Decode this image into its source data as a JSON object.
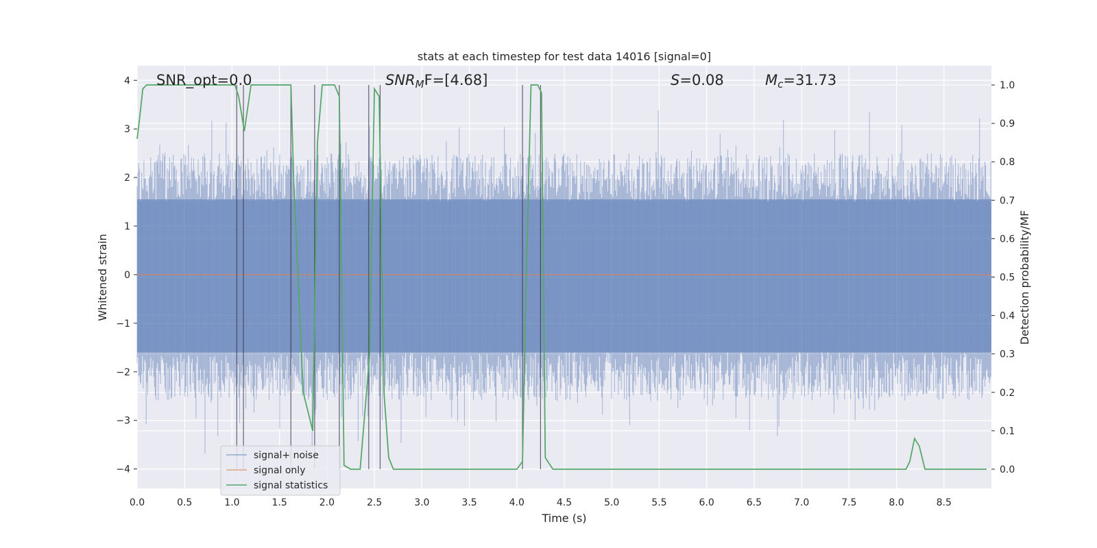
{
  "chart_data": {
    "type": "line",
    "title": "stats at each timestep for test data 14016 [signal=0]",
    "xlabel": "Time (s)",
    "ylabel": "Whitened strain",
    "y2label": "Detection probability/MF",
    "xlim": [
      0,
      9.0
    ],
    "ylim": [
      -4.4,
      4.3
    ],
    "y2lim": [
      -0.05,
      1.05
    ],
    "xticks": [
      "0.0",
      "0.5",
      "1.0",
      "1.5",
      "2.0",
      "2.5",
      "3.0",
      "3.5",
      "4.0",
      "4.5",
      "5.0",
      "5.5",
      "6.0",
      "6.5",
      "7.0",
      "7.5",
      "8.0",
      "8.5"
    ],
    "yticks": [
      "−4",
      "−3",
      "−2",
      "−1",
      "0",
      "1",
      "2",
      "3",
      "4"
    ],
    "y2ticks": [
      "0.0",
      "0.1",
      "0.2",
      "0.3",
      "0.4",
      "0.5",
      "0.6",
      "0.7",
      "0.8",
      "0.9",
      "1.0"
    ],
    "grid": true,
    "legend_position": "lower-left",
    "annotations": {
      "snr_opt": "SNR_opt=0.0",
      "snr_mf_base": "SNR",
      "snr_mf_sub": "M",
      "snr_mf_rest": "F=[4.68]",
      "s_base": "S",
      "s_rest": "=0.08",
      "mc_base": "M",
      "mc_sub": "c",
      "mc_rest": "=31.73"
    },
    "series": [
      {
        "name": "signal+ noise",
        "color": "#4c72b0",
        "description_level": "noise envelope approx ±2.3 typical, peaks to ±4"
      },
      {
        "name": "signal only",
        "color": "#dd8452",
        "values_constant": 0.0
      },
      {
        "name": "signal statistics",
        "color": "#55a868",
        "axis": "right",
        "x": [
          0.0,
          0.02,
          0.06,
          0.1,
          0.15,
          1.0,
          1.03,
          1.07,
          1.13,
          1.2,
          1.62,
          1.65,
          1.75,
          1.85,
          1.9,
          1.95,
          2.08,
          2.13,
          2.18,
          2.25,
          2.35,
          2.45,
          2.5,
          2.55,
          2.6,
          2.65,
          2.7,
          4.0,
          4.06,
          4.1,
          4.15,
          4.22,
          4.26,
          4.3,
          4.38,
          8.1,
          8.14,
          8.19,
          8.24,
          8.3,
          8.95
        ],
        "values": [
          0.86,
          0.9,
          0.99,
          1.0,
          1.0,
          1.0,
          1.0,
          0.97,
          0.88,
          1.0,
          1.0,
          0.75,
          0.2,
          0.1,
          0.85,
          1.0,
          1.0,
          0.97,
          0.01,
          0.0,
          0.0,
          0.3,
          0.99,
          0.97,
          0.2,
          0.03,
          0.0,
          0.0,
          0.02,
          0.5,
          1.0,
          1.0,
          0.98,
          0.03,
          0.0,
          0.0,
          0.02,
          0.08,
          0.06,
          0.0,
          0.0
        ]
      }
    ],
    "vertical_markers": [
      1.05,
      1.12,
      1.62,
      1.87,
      2.13,
      2.44,
      2.56,
      4.06,
      4.25
    ]
  }
}
